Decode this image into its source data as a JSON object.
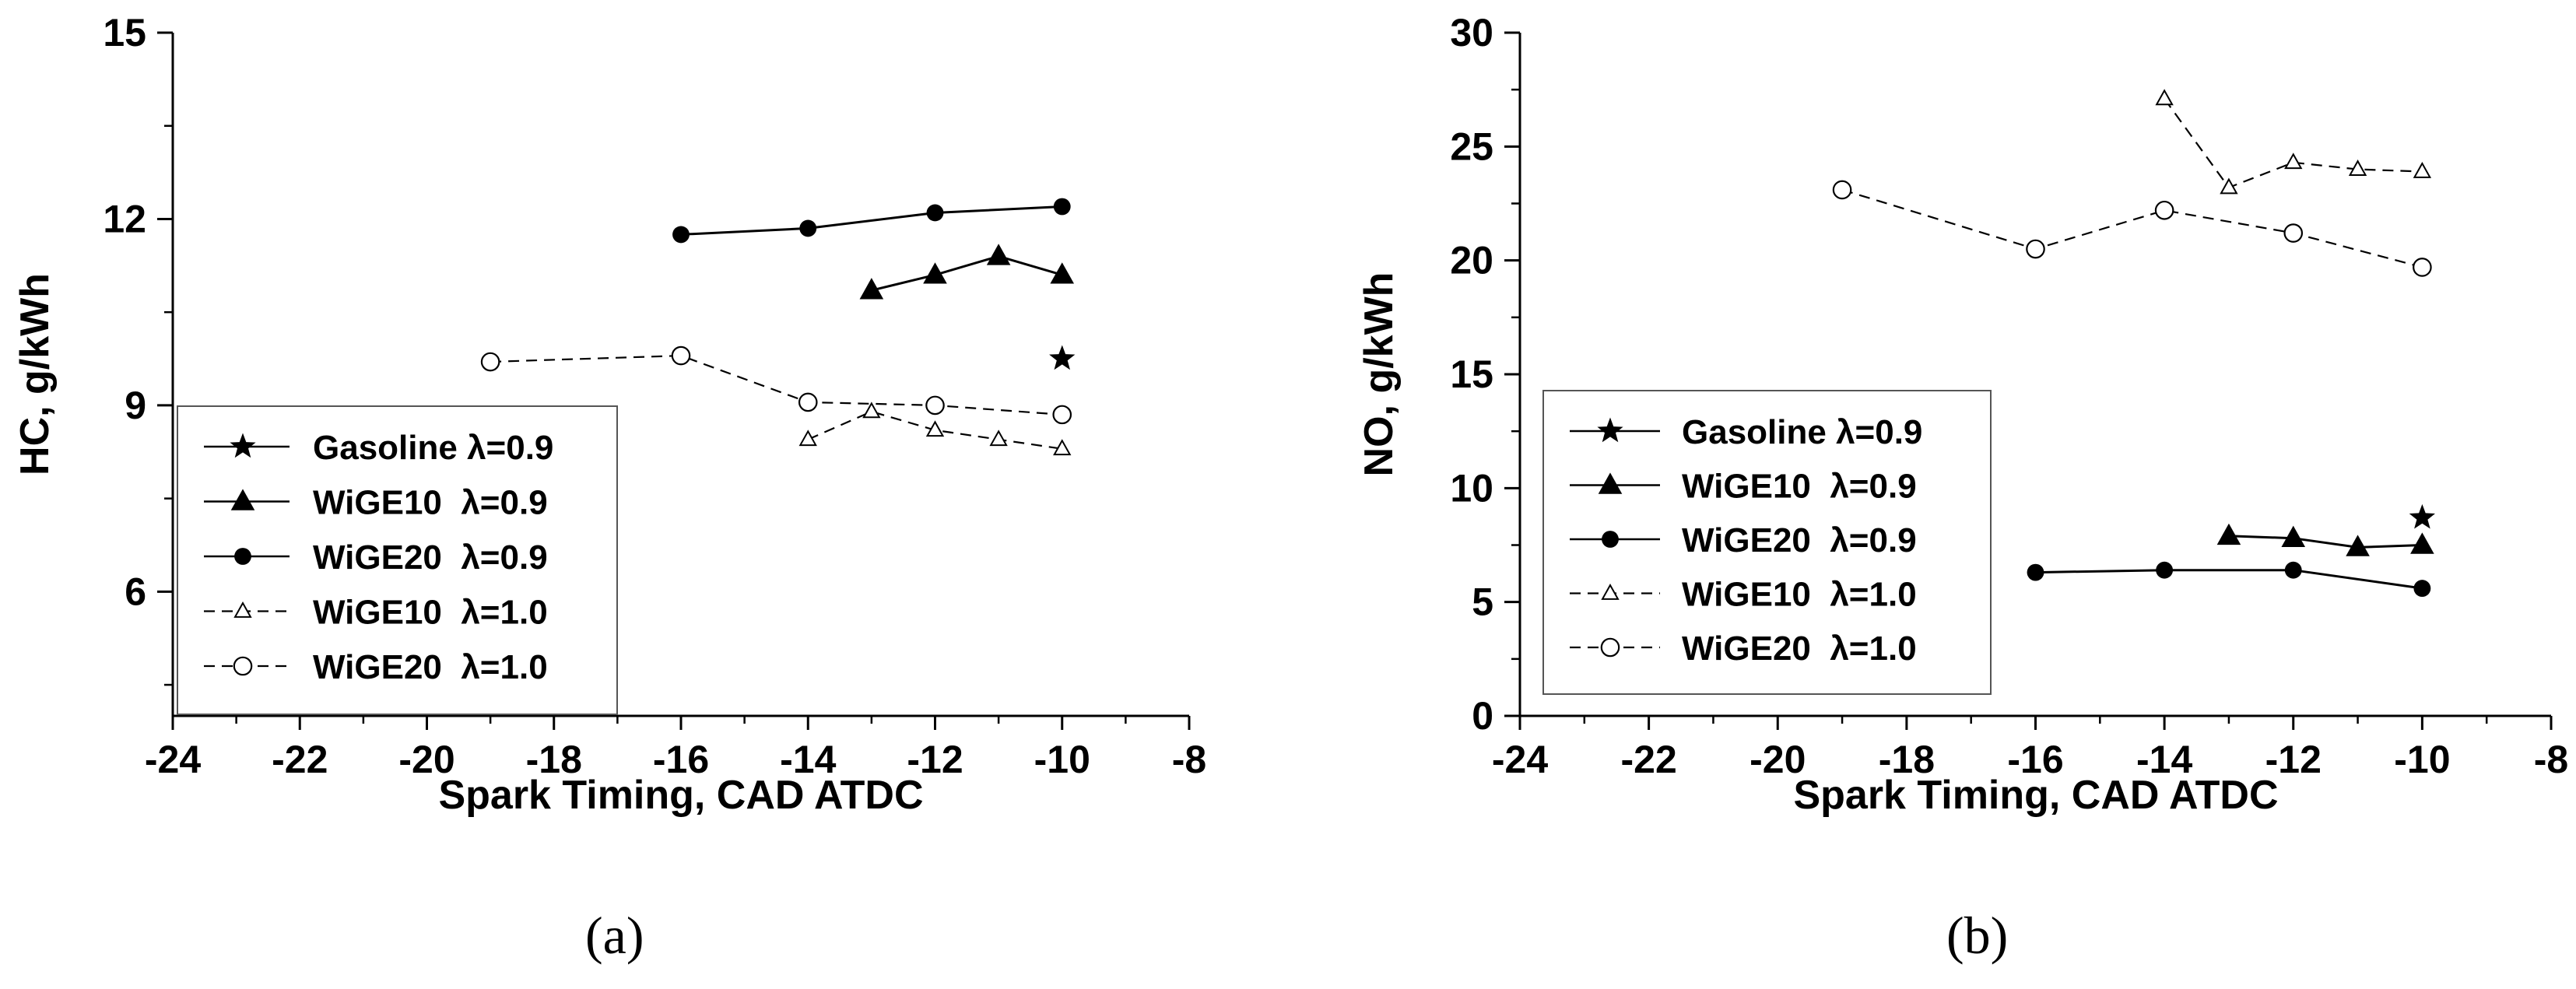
{
  "chart_data": [
    {
      "type": "line",
      "panel_label": "(a)",
      "xlabel": "Spark Timing, CAD ATDC",
      "ylabel": "HC, g/kWh",
      "xlim": [
        -24,
        -8
      ],
      "ylim": [
        4,
        15
      ],
      "xticks": [
        -24,
        -22,
        -20,
        -18,
        -16,
        -14,
        -12,
        -10,
        -8
      ],
      "yticks": [
        6,
        9,
        12,
        15
      ],
      "legend_position": "lower-left",
      "series": [
        {
          "name": "Gasoline λ=0.9",
          "marker": "star",
          "line": "solid",
          "x": [
            -10
          ],
          "y": [
            9.75
          ]
        },
        {
          "name": "WiGE10  λ=0.9",
          "marker": "triangle-filled",
          "line": "solid",
          "x": [
            -13,
            -12,
            -11,
            -10
          ],
          "y": [
            10.85,
            11.1,
            11.4,
            11.1
          ]
        },
        {
          "name": "WiGE20  λ=0.9",
          "marker": "circle-filled",
          "line": "solid",
          "x": [
            -16,
            -14,
            -12,
            -10
          ],
          "y": [
            11.75,
            11.85,
            12.1,
            12.2
          ]
        },
        {
          "name": "WiGE10  λ=1.0",
          "marker": "triangle-open",
          "line": "dashed",
          "x": [
            -14,
            -13,
            -12,
            -11,
            -10
          ],
          "y": [
            8.45,
            8.9,
            8.6,
            8.45,
            8.3
          ]
        },
        {
          "name": "WiGE20  λ=1.0",
          "marker": "circle-open",
          "line": "dashed",
          "x": [
            -19,
            -16,
            -14,
            -12,
            -10
          ],
          "y": [
            9.7,
            9.8,
            9.05,
            9.0,
            8.85
          ]
        }
      ]
    },
    {
      "type": "line",
      "panel_label": "(b)",
      "xlabel": "Spark Timing, CAD ATDC",
      "ylabel": "NO, g/kWh",
      "xlim": [
        -24,
        -8
      ],
      "ylim": [
        0,
        30
      ],
      "xticks": [
        -24,
        -22,
        -20,
        -18,
        -16,
        -14,
        -12,
        -10,
        -8
      ],
      "yticks": [
        0,
        5,
        10,
        15,
        20,
        25,
        30
      ],
      "legend_position": "lower-left",
      "series": [
        {
          "name": "Gasoline λ=0.9",
          "marker": "star",
          "line": "solid",
          "x": [
            -10
          ],
          "y": [
            8.7
          ]
        },
        {
          "name": "WiGE10  λ=0.9",
          "marker": "triangle-filled",
          "line": "solid",
          "x": [
            -13,
            -12,
            -11,
            -10
          ],
          "y": [
            7.9,
            7.8,
            7.4,
            7.5
          ]
        },
        {
          "name": "WiGE20  λ=0.9",
          "marker": "circle-filled",
          "line": "solid",
          "x": [
            -16,
            -14,
            -12,
            -10
          ],
          "y": [
            6.3,
            6.4,
            6.4,
            5.6
          ]
        },
        {
          "name": "WiGE10  λ=1.0",
          "marker": "triangle-open",
          "line": "dashed",
          "x": [
            -14,
            -13,
            -12,
            -11,
            -10
          ],
          "y": [
            27.1,
            23.2,
            24.3,
            24.0,
            23.9
          ]
        },
        {
          "name": "WiGE20  λ=1.0",
          "marker": "circle-open",
          "line": "dashed",
          "x": [
            -19,
            -16,
            -14,
            -12,
            -10
          ],
          "y": [
            23.1,
            20.5,
            22.2,
            21.2,
            19.7
          ]
        }
      ]
    }
  ]
}
